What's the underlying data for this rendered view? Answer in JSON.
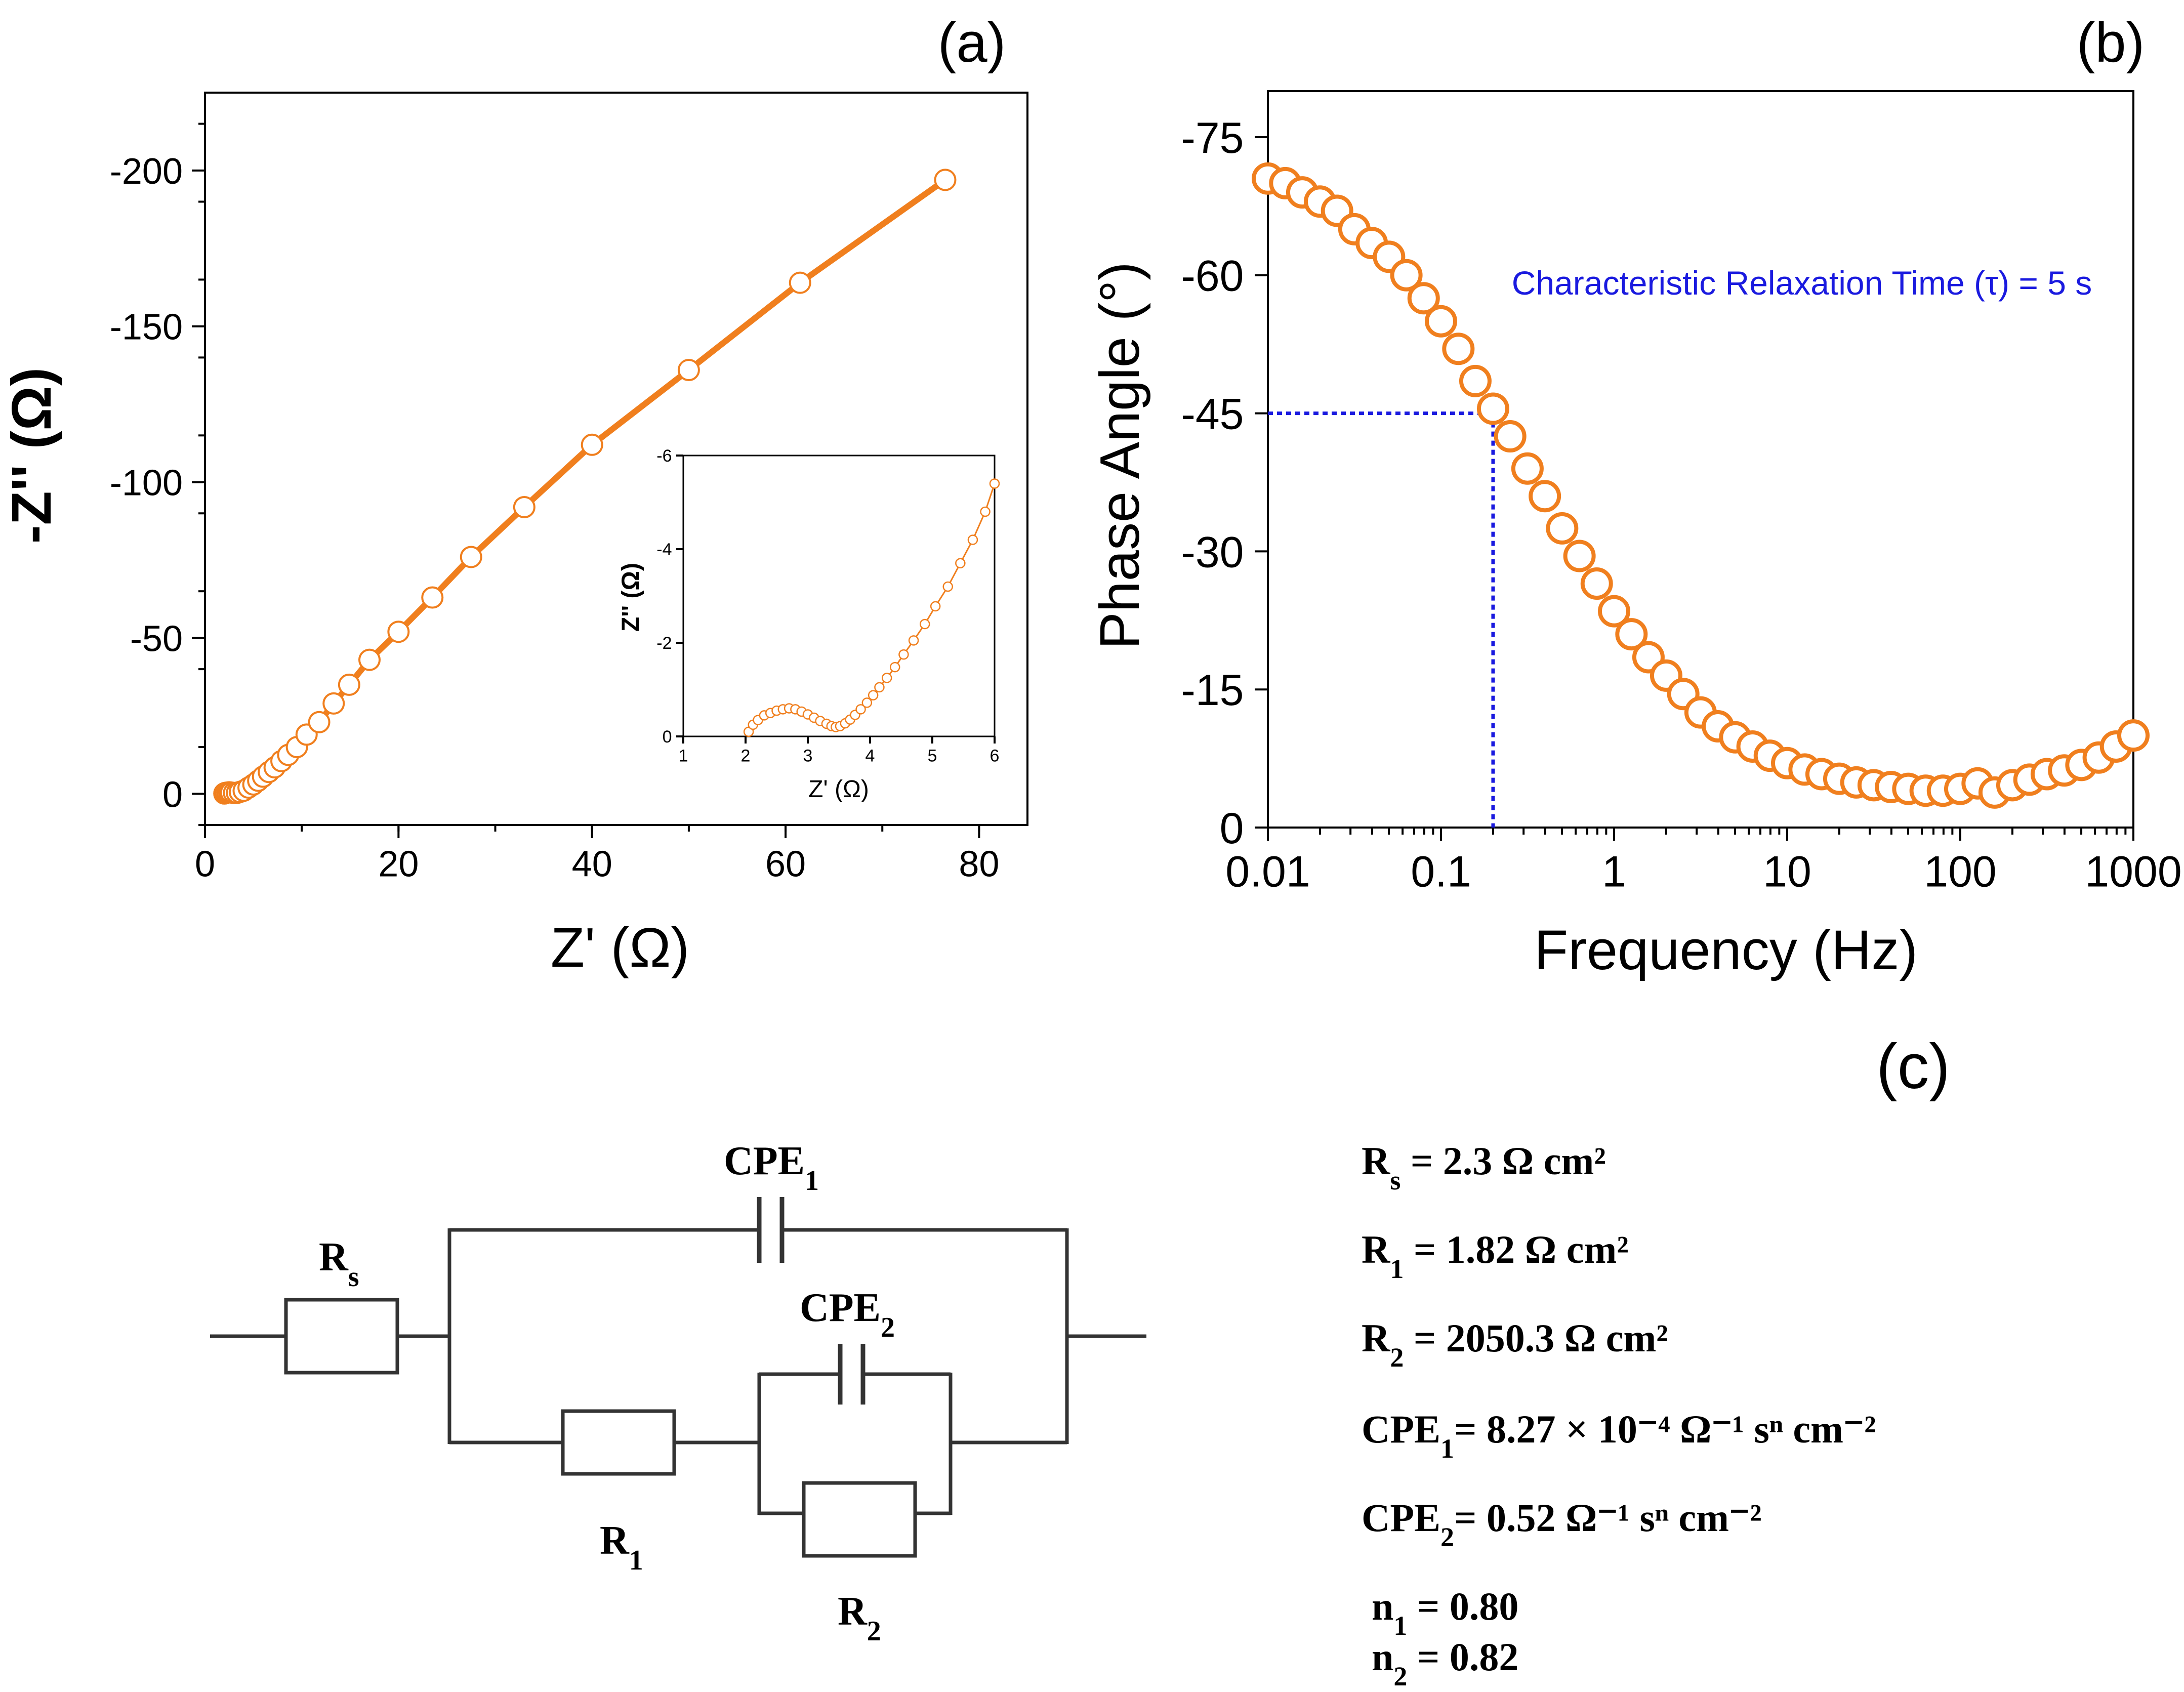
{
  "panel_labels": {
    "a": "(a)",
    "b": "(b)",
    "c": "(c)"
  },
  "colors": {
    "series": "#f07f1e",
    "annotation": "#1a1adf",
    "axis": "#000000",
    "circuit": "#333333"
  },
  "chart_data": [
    {
      "id": "a",
      "type": "scatter",
      "title": "",
      "xlabel": "Z' (Ω)",
      "ylabel": "-Z'' (Ω)",
      "xlim": [
        0,
        85
      ],
      "ylim": [
        10,
        -225
      ],
      "xticks": [
        0,
        20,
        40,
        60,
        80
      ],
      "yticks": [
        0,
        -50,
        -100,
        -150,
        -200
      ],
      "tick_labels_x": [
        "0",
        "20",
        "40",
        "60",
        "80"
      ],
      "tick_labels_y": [
        "0",
        "-50",
        "-100",
        "-150",
        "-200"
      ],
      "series": [
        {
          "name": "Nyquist",
          "line": true,
          "x": [
            2.0,
            2.1,
            2.3,
            2.5,
            2.7,
            3.0,
            3.3,
            3.6,
            4.0,
            4.5,
            5.0,
            5.5,
            6.0,
            6.6,
            7.2,
            7.9,
            8.6,
            9.5,
            10.5,
            11.8,
            13.3,
            14.9,
            17.0,
            20.0,
            23.5,
            27.5,
            33.0,
            40.0,
            50.0,
            61.5,
            76.5
          ],
          "y": [
            -0.1,
            -0.3,
            -0.4,
            -0.5,
            -0.4,
            -0.3,
            -0.3,
            -0.6,
            -1.0,
            -2.0,
            -3.0,
            -4.2,
            -5.5,
            -7.0,
            -8.5,
            -10.5,
            -12.5,
            -15.0,
            -19.0,
            -23.0,
            -29.0,
            -35.0,
            -43.0,
            -52.0,
            -63.0,
            -76.0,
            -92.0,
            -112.0,
            -136.0,
            -164.0,
            -197.0
          ]
        }
      ]
    },
    {
      "id": "a-inset",
      "type": "scatter",
      "xlabel": "Z' (Ω)",
      "ylabel": "Z'' (Ω)",
      "xlim": [
        1,
        6
      ],
      "ylim": [
        0,
        -6
      ],
      "xticks": [
        1,
        2,
        3,
        4,
        5,
        6
      ],
      "yticks": [
        0,
        -2,
        -4,
        -6
      ],
      "tick_labels_x": [
        "1",
        "2",
        "3",
        "4",
        "5",
        "6"
      ],
      "tick_labels_y": [
        "0",
        "-2",
        "-4",
        "-6"
      ],
      "series": [
        {
          "name": "Nyquist zoom",
          "line": true,
          "x": [
            2.05,
            2.12,
            2.2,
            2.3,
            2.4,
            2.5,
            2.6,
            2.7,
            2.8,
            2.9,
            3.0,
            3.1,
            3.2,
            3.3,
            3.38,
            3.45,
            3.52,
            3.6,
            3.68,
            3.76,
            3.85,
            3.95,
            4.05,
            4.15,
            4.27,
            4.4,
            4.54,
            4.7,
            4.88,
            5.05,
            5.25,
            5.45,
            5.65,
            5.85,
            6.0
          ],
          "y": [
            -0.1,
            -0.25,
            -0.35,
            -0.45,
            -0.5,
            -0.55,
            -0.58,
            -0.6,
            -0.58,
            -0.53,
            -0.47,
            -0.4,
            -0.33,
            -0.27,
            -0.22,
            -0.2,
            -0.22,
            -0.28,
            -0.36,
            -0.46,
            -0.58,
            -0.72,
            -0.88,
            -1.05,
            -1.25,
            -1.48,
            -1.75,
            -2.05,
            -2.4,
            -2.78,
            -3.2,
            -3.7,
            -4.2,
            -4.8,
            -5.4
          ]
        }
      ]
    },
    {
      "id": "b",
      "type": "scatter",
      "xlabel": "Frequency (Hz)",
      "ylabel": "Phase Angle (°)",
      "xscale": "log",
      "xlim": [
        0.01,
        1000
      ],
      "ylim": [
        0,
        -80
      ],
      "xticks": [
        0.01,
        0.1,
        1,
        10,
        100,
        1000
      ],
      "yticks": [
        0,
        -15,
        -30,
        -45,
        -60,
        -75
      ],
      "tick_labels_x": [
        "0.01",
        "0.1",
        "1",
        "10",
        "100",
        "1000"
      ],
      "tick_labels_y": [
        "0",
        "-15",
        "-30",
        "-45",
        "-60",
        "-75"
      ],
      "annotation": {
        "text": "Characteristic Relaxation Time (τ) = 5 s",
        "x": 0.2,
        "y": -45
      },
      "series": [
        {
          "name": "Phase",
          "line": false,
          "x": [
            0.01,
            0.0126,
            0.0158,
            0.02,
            0.0251,
            0.0316,
            0.0398,
            0.0501,
            0.0631,
            0.0794,
            0.1,
            0.126,
            0.158,
            0.2,
            0.251,
            0.316,
            0.398,
            0.501,
            0.631,
            0.794,
            1.0,
            1.26,
            1.58,
            2.0,
            2.51,
            3.16,
            3.98,
            5.01,
            6.31,
            7.94,
            10.0,
            12.6,
            15.8,
            20.0,
            25.1,
            31.6,
            39.8,
            50.1,
            63.1,
            79.4,
            100.0,
            126.0,
            158.0,
            200.0,
            251.0,
            316.0,
            398.0,
            501.0,
            631.0,
            794.0,
            1000.0
          ],
          "y": [
            -70.5,
            -70.0,
            -69.0,
            -68.0,
            -67.0,
            -65.0,
            -63.5,
            -62.0,
            -60.0,
            -57.5,
            -55.0,
            -52.0,
            -48.5,
            -45.5,
            -42.5,
            -39.0,
            -36.0,
            -32.5,
            -29.5,
            -26.5,
            -23.5,
            -21.0,
            -18.5,
            -16.5,
            -14.5,
            -12.5,
            -11.0,
            -9.8,
            -8.8,
            -7.8,
            -7.0,
            -6.3,
            -5.8,
            -5.3,
            -4.9,
            -4.6,
            -4.4,
            -4.2,
            -4.0,
            -4.0,
            -4.2,
            -4.8,
            -3.8,
            -4.6,
            -5.2,
            -5.8,
            -6.2,
            -6.8,
            -7.6,
            -8.8,
            -10.0
          ]
        }
      ]
    }
  ],
  "circuit": {
    "labels": {
      "rs": {
        "main": "R",
        "sub": "s"
      },
      "r1": {
        "main": "R",
        "sub": "1"
      },
      "r2": {
        "main": "R",
        "sub": "2"
      },
      "cpe1": {
        "main": "CPE",
        "sub": "1"
      },
      "cpe2": {
        "main": "CPE",
        "sub": "2"
      }
    },
    "params": [
      {
        "main": "R",
        "sub": "s",
        "rest": " = 2.3 Ω cm²"
      },
      {
        "main": "R",
        "sub": "1",
        "rest": " = 1.82 Ω cm²"
      },
      {
        "main": "R",
        "sub": "2",
        "rest": " = 2050.3 Ω cm²"
      },
      {
        "main": "CPE",
        "sub": "1",
        "rest": "= 8.27 × 10⁻⁴ Ω⁻¹ sⁿ cm⁻²"
      },
      {
        "main": "CPE",
        "sub": "2",
        "rest": "= 0.52 Ω⁻¹ sⁿ cm⁻²"
      },
      {
        "main": "n",
        "sub": "1",
        "rest": " = 0.80"
      },
      {
        "main": "n",
        "sub": "2",
        "rest": " = 0.82"
      }
    ]
  }
}
